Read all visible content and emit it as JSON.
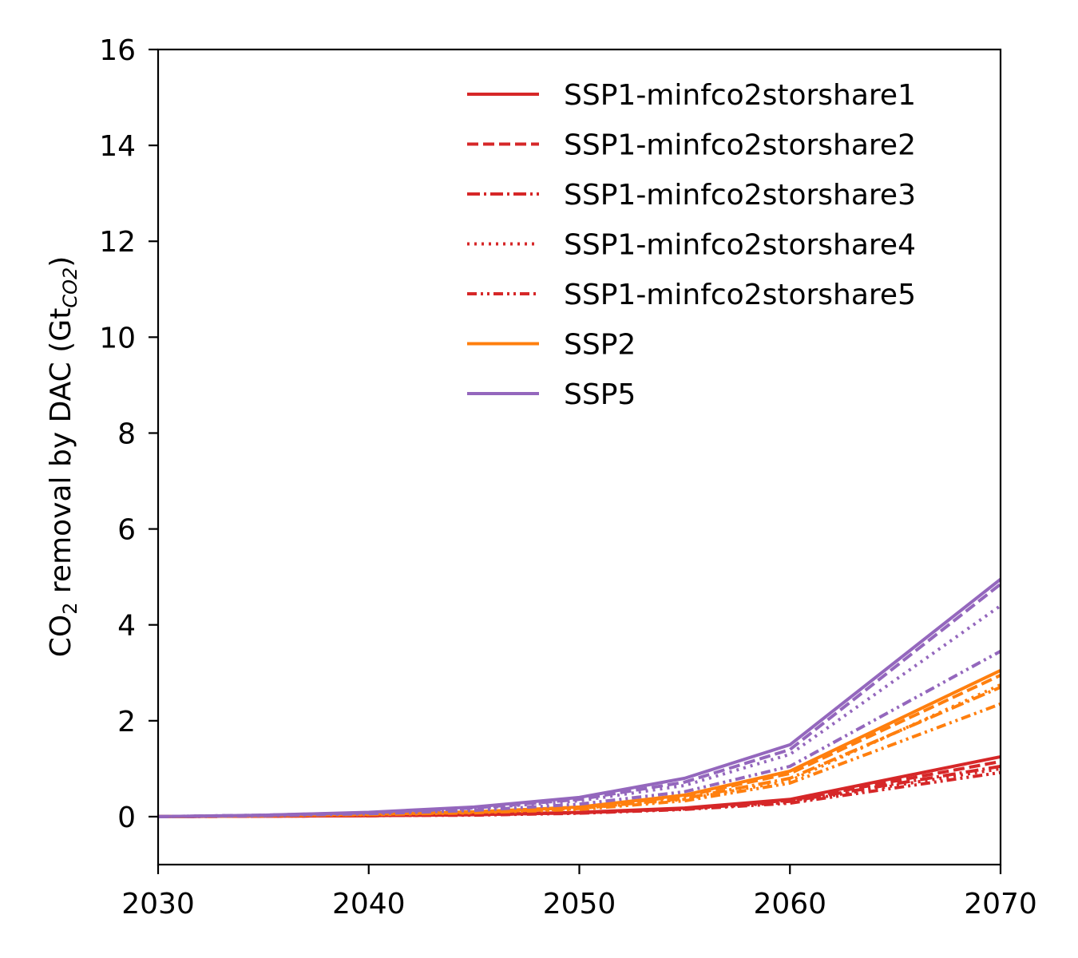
{
  "chart_data": {
    "type": "line",
    "title": "",
    "xlabel": "",
    "ylabel": "CO",
    "ylabel_sub": "2",
    "ylabel_mid": " removal by DAC (Gt",
    "ylabel_unit_sub": "CO2",
    "ylabel_end": ")",
    "xlim": [
      2030,
      2070
    ],
    "ylim": [
      -1,
      16
    ],
    "x": [
      2030,
      2035,
      2040,
      2045,
      2050,
      2055,
      2060,
      2070
    ],
    "xticks": [
      2030,
      2040,
      2050,
      2060,
      2070
    ],
    "xtick_labels": [
      "2030",
      "2040",
      "2050",
      "2060",
      "2070"
    ],
    "yticks": [
      0,
      2,
      4,
      6,
      8,
      10,
      12,
      14,
      16
    ],
    "ytick_labels": [
      "0",
      "2",
      "4",
      "6",
      "8",
      "10",
      "12",
      "14",
      "16"
    ],
    "grid": false,
    "legend_position": "top-right",
    "colors": {
      "ssp1": "#d62728",
      "ssp2": "#ff7f0e",
      "ssp5": "#9467bd"
    },
    "legend": [
      {
        "label": "SSP1-minfco2storshare1",
        "color": "#d62728",
        "dash": "solid"
      },
      {
        "label": "SSP1-minfco2storshare2",
        "color": "#d62728",
        "dash": "dashed"
      },
      {
        "label": "SSP1-minfco2storshare3",
        "color": "#d62728",
        "dash": "dashdot"
      },
      {
        "label": "SSP1-minfco2storshare4",
        "color": "#d62728",
        "dash": "dotted"
      },
      {
        "label": "SSP1-minfco2storshare5",
        "color": "#d62728",
        "dash": "dashdotdot"
      },
      {
        "label": "SSP2",
        "color": "#ff7f0e",
        "dash": "solid"
      },
      {
        "label": "SSP5",
        "color": "#9467bd",
        "dash": "solid"
      }
    ],
    "series": [
      {
        "group": "ssp1",
        "style": "solid",
        "color": "#d62728",
        "values": [
          0,
          0.01,
          0.02,
          0.04,
          0.09,
          0.18,
          0.36,
          1.25
        ]
      },
      {
        "group": "ssp1",
        "style": "dashed",
        "color": "#d62728",
        "values": [
          0,
          0.01,
          0.02,
          0.04,
          0.08,
          0.17,
          0.34,
          1.15
        ]
      },
      {
        "group": "ssp1",
        "style": "dashdot",
        "color": "#d62728",
        "values": [
          0,
          0.01,
          0.02,
          0.04,
          0.08,
          0.16,
          0.32,
          1.05
        ]
      },
      {
        "group": "ssp1",
        "style": "dotted",
        "color": "#d62728",
        "values": [
          0,
          0.01,
          0.02,
          0.04,
          0.08,
          0.16,
          0.3,
          1.0
        ]
      },
      {
        "group": "ssp1",
        "style": "dashdotdot",
        "color": "#d62728",
        "values": [
          0,
          0.01,
          0.02,
          0.03,
          0.07,
          0.15,
          0.28,
          0.92
        ]
      },
      {
        "group": "ssp2",
        "style": "solid",
        "color": "#ff7f0e",
        "values": [
          0,
          0.02,
          0.05,
          0.1,
          0.2,
          0.45,
          0.95,
          3.05
        ]
      },
      {
        "group": "ssp2",
        "style": "dashed",
        "color": "#ff7f0e",
        "values": [
          0,
          0.02,
          0.05,
          0.1,
          0.19,
          0.43,
          0.9,
          2.95
        ]
      },
      {
        "group": "ssp2",
        "style": "dashdot",
        "color": "#ff7f0e",
        "values": [
          0,
          0.02,
          0.05,
          0.09,
          0.17,
          0.38,
          0.8,
          2.7
        ]
      },
      {
        "group": "ssp2",
        "style": "dotted",
        "color": "#ff7f0e",
        "values": [
          0,
          0.02,
          0.04,
          0.09,
          0.17,
          0.36,
          0.75,
          2.75
        ]
      },
      {
        "group": "ssp2",
        "style": "dashdotdot",
        "color": "#ff7f0e",
        "values": [
          0,
          0.02,
          0.04,
          0.08,
          0.15,
          0.33,
          0.7,
          2.35
        ]
      },
      {
        "group": "ssp5",
        "style": "solid",
        "color": "#9467bd",
        "values": [
          0,
          0.03,
          0.09,
          0.2,
          0.4,
          0.8,
          1.5,
          4.95
        ]
      },
      {
        "group": "ssp5",
        "style": "dashed",
        "color": "#9467bd",
        "values": [
          0,
          0.03,
          0.08,
          0.18,
          0.36,
          0.72,
          1.4,
          4.85
        ]
      },
      {
        "group": "ssp5",
        "style": "dotted",
        "color": "#9467bd",
        "values": [
          0,
          0.03,
          0.08,
          0.17,
          0.33,
          0.65,
          1.3,
          4.4
        ]
      },
      {
        "group": "ssp5",
        "style": "dashdotdot",
        "color": "#9467bd",
        "values": [
          0,
          0.02,
          0.06,
          0.13,
          0.26,
          0.52,
          1.05,
          3.45
        ]
      }
    ]
  }
}
